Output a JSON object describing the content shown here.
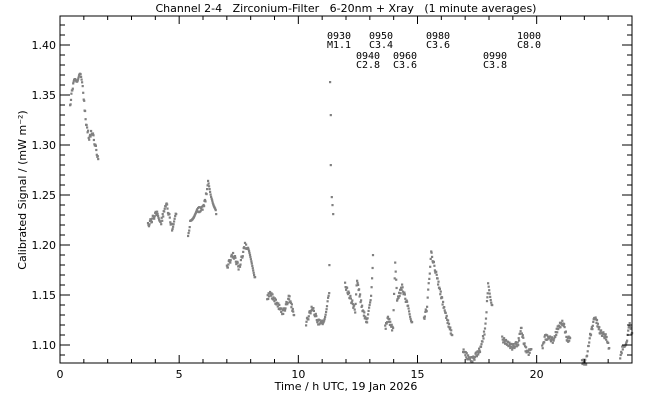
{
  "chart_data": {
    "type": "scatter",
    "title": "Channel 2-4   Zirconium-Filter   6-20nm + Xray   (1 minute averages)",
    "xlabel": "Time / h UTC, 19 Jan 2026",
    "ylabel": "Calibrated Signal / (mW m⁻²)",
    "xlim": [
      0,
      24
    ],
    "ylim": [
      1.082,
      1.429
    ],
    "xticks": [
      0,
      5,
      10,
      15,
      20
    ],
    "xtick_labels": [
      "0",
      "5",
      "10",
      "15",
      "20"
    ],
    "yticks": [
      1.1,
      1.15,
      1.2,
      1.25,
      1.3,
      1.35,
      1.4
    ],
    "ytick_labels": [
      "1.10",
      "1.15",
      "1.20",
      "1.25",
      "1.30",
      "1.35",
      "1.40"
    ],
    "grid": false,
    "marker_color": "#808080",
    "flare_annotations": [
      {
        "id": "0930",
        "class": "M1.1"
      },
      {
        "id": "0940",
        "class": "C2.8"
      },
      {
        "id": "0950",
        "class": "C3.4"
      },
      {
        "id": "0960",
        "class": "C3.6"
      },
      {
        "id": "0980",
        "class": "C3.6"
      },
      {
        "id": "0990",
        "class": "C3.8"
      },
      {
        "id": "1000",
        "class": "C8.0"
      }
    ],
    "segments": [
      {
        "interp": true,
        "points": [
          [
            0.42,
            1.34
          ],
          [
            0.55,
            1.362
          ],
          [
            0.88,
            1.37
          ],
          [
            0.97,
            1.352
          ],
          [
            1.09,
            1.322
          ],
          [
            1.22,
            1.307
          ],
          [
            1.34,
            1.314
          ],
          [
            1.6,
            1.286
          ]
        ]
      },
      {
        "interp": true,
        "points": [
          [
            3.69,
            1.22
          ],
          [
            4.07,
            1.233
          ],
          [
            4.24,
            1.223
          ],
          [
            4.45,
            1.242
          ],
          [
            4.7,
            1.217
          ],
          [
            4.87,
            1.231
          ]
        ]
      },
      {
        "interp": true,
        "points": [
          [
            5.37,
            1.207
          ],
          [
            5.46,
            1.225
          ],
          [
            5.75,
            1.235
          ],
          [
            5.96,
            1.236
          ],
          [
            6.08,
            1.243
          ],
          [
            6.21,
            1.262
          ],
          [
            6.38,
            1.247
          ],
          [
            6.55,
            1.231
          ]
        ]
      },
      {
        "interp": true,
        "points": [
          [
            7.0,
            1.178
          ],
          [
            7.26,
            1.191
          ],
          [
            7.51,
            1.177
          ],
          [
            7.76,
            1.2
          ],
          [
            7.89,
            1.195
          ],
          [
            8.18,
            1.168
          ]
        ]
      },
      {
        "interp": true,
        "points": [
          [
            8.69,
            1.147
          ],
          [
            8.81,
            1.152
          ],
          [
            9.36,
            1.132
          ],
          [
            9.61,
            1.148
          ],
          [
            9.82,
            1.13
          ]
        ]
      },
      {
        "interp": true,
        "points": [
          [
            10.32,
            1.122
          ],
          [
            10.57,
            1.138
          ],
          [
            10.83,
            1.123
          ],
          [
            11.04,
            1.123
          ],
          [
            11.2,
            1.138
          ],
          [
            11.29,
            1.152
          ]
        ]
      },
      {
        "interp": false,
        "points": [
          [
            11.3,
            1.18
          ],
          [
            11.33,
            1.363
          ],
          [
            11.36,
            1.33
          ],
          [
            11.36,
            1.28
          ],
          [
            11.4,
            1.248
          ],
          [
            11.43,
            1.24
          ],
          [
            11.46,
            1.231
          ]
        ]
      },
      {
        "interp": true,
        "points": [
          [
            11.96,
            1.16
          ],
          [
            12.38,
            1.135
          ],
          [
            12.46,
            1.165
          ],
          [
            12.67,
            1.137
          ],
          [
            12.88,
            1.122
          ],
          [
            13.05,
            1.148
          ],
          [
            13.13,
            1.19
          ]
        ]
      },
      {
        "interp": true,
        "points": [
          [
            13.64,
            1.117
          ],
          [
            13.76,
            1.127
          ],
          [
            13.97,
            1.115
          ],
          [
            14.06,
            1.185
          ],
          [
            14.14,
            1.145
          ],
          [
            14.35,
            1.158
          ],
          [
            14.6,
            1.138
          ],
          [
            14.77,
            1.123
          ]
        ]
      },
      {
        "interp": true,
        "points": [
          [
            15.27,
            1.127
          ],
          [
            15.4,
            1.138
          ],
          [
            15.49,
            1.168
          ],
          [
            15.57,
            1.192
          ],
          [
            15.82,
            1.167
          ],
          [
            16.03,
            1.145
          ],
          [
            16.24,
            1.125
          ],
          [
            16.45,
            1.11
          ]
        ]
      },
      {
        "interp": true,
        "points": [
          [
            16.91,
            1.095
          ],
          [
            17.1,
            1.088
          ],
          [
            17.3,
            1.085
          ],
          [
            17.45,
            1.09
          ],
          [
            17.62,
            1.095
          ],
          [
            17.83,
            1.115
          ],
          [
            17.91,
            1.142
          ],
          [
            17.96,
            1.16
          ],
          [
            18.13,
            1.14
          ]
        ]
      },
      {
        "interp": true,
        "points": [
          [
            18.55,
            1.106
          ],
          [
            18.97,
            1.098
          ],
          [
            19.22,
            1.102
          ],
          [
            19.34,
            1.117
          ],
          [
            19.51,
            1.097
          ],
          [
            19.64,
            1.092
          ],
          [
            19.77,
            1.096
          ]
        ]
      },
      {
        "interp": true,
        "points": [
          [
            20.23,
            1.097
          ],
          [
            20.35,
            1.108
          ],
          [
            20.56,
            1.107
          ],
          [
            20.69,
            1.104
          ],
          [
            20.9,
            1.118
          ],
          [
            21.11,
            1.123
          ],
          [
            21.28,
            1.105
          ],
          [
            21.4,
            1.107
          ]
        ]
      },
      {
        "interp": true,
        "points": [
          [
            21.9,
            1.083
          ],
          [
            22.07,
            1.083
          ],
          [
            22.2,
            1.105
          ],
          [
            22.37,
            1.122
          ],
          [
            22.45,
            1.128
          ],
          [
            22.66,
            1.113
          ],
          [
            22.91,
            1.108
          ],
          [
            23.04,
            1.097
          ]
        ]
      },
      {
        "interp": true,
        "points": [
          [
            23.5,
            1.088
          ],
          [
            23.63,
            1.1
          ],
          [
            23.79,
            1.103
          ],
          [
            23.88,
            1.122
          ],
          [
            24.0,
            1.112
          ]
        ]
      }
    ]
  }
}
